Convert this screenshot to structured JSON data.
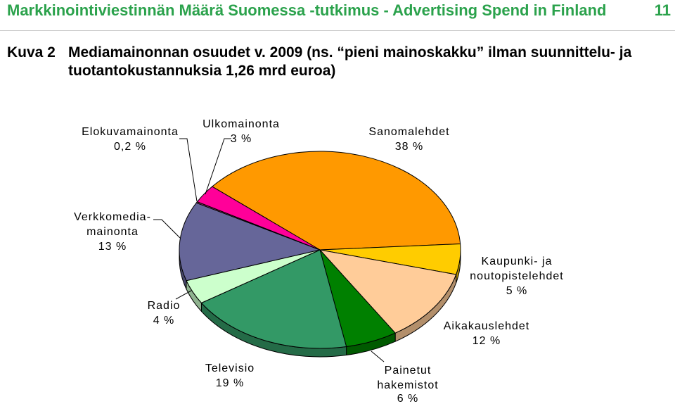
{
  "header": {
    "title": "Markkinointiviestinnän Määrä Suomessa -tutkimus - Advertising Spend in Finland",
    "page_number": "11"
  },
  "figure": {
    "label": "Kuva 2",
    "caption_lines": [
      "Mediamainonnan osuudet v. 2009 (ns. “pieni mainoskakku” ilman suunnittelu- ja",
      "tuotantokustannuksia 1,26 mrd euroa)"
    ]
  },
  "colors": {
    "header_green": "#2BA24C",
    "outline": "#000000"
  },
  "chart_data": {
    "type": "pie",
    "slices": [
      {
        "name_lines": [
          "Sanomalehdet"
        ],
        "value": 38,
        "value_label": "38 %",
        "color": "#FF9900"
      },
      {
        "name_lines": [
          "Kaupunki- ja",
          "noutopistelehdet"
        ],
        "value": 5,
        "value_label": "5 %",
        "color": "#FFCC00"
      },
      {
        "name_lines": [
          "Aikakauslehdet"
        ],
        "value": 12,
        "value_label": "12 %",
        "color": "#FFCC99"
      },
      {
        "name_lines": [
          "Painetut",
          "hakemistot"
        ],
        "value": 6,
        "value_label": "6 %",
        "color": "#008000"
      },
      {
        "name_lines": [
          "Televisio"
        ],
        "value": 19,
        "value_label": "19 %",
        "color": "#339966"
      },
      {
        "name_lines": [
          "Radio"
        ],
        "value": 4,
        "value_label": "4 %",
        "color": "#CCFFCC"
      },
      {
        "name_lines": [
          "Verkkomedia-",
          "mainonta"
        ],
        "value": 13,
        "value_label": "13 %",
        "color": "#666699"
      },
      {
        "name_lines": [
          "Elokuvamainonta"
        ],
        "value": 0.2,
        "value_label": "0,2 %",
        "color": "#993366"
      },
      {
        "name_lines": [
          "Ulkomainonta"
        ],
        "value": 3,
        "value_label": "3 %",
        "color": "#FF0099"
      }
    ]
  }
}
